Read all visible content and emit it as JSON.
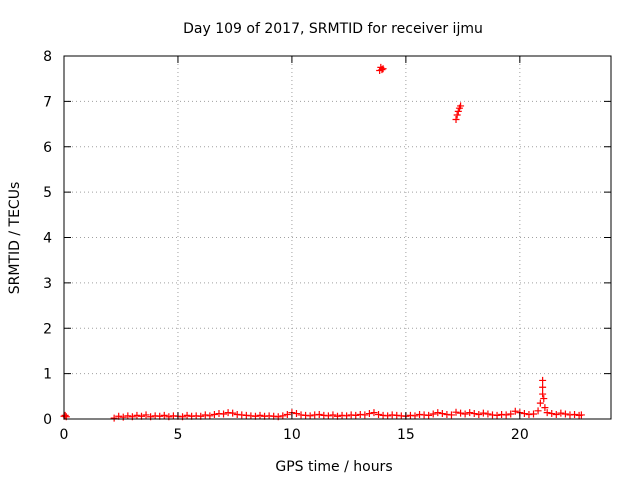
{
  "chart_data": {
    "type": "scatter",
    "title": "Day 109 of 2017, SRMTID for receiver ijmu",
    "xlabel": "GPS time / hours",
    "ylabel": "SRMTID / TECUs",
    "xlim": [
      0,
      24
    ],
    "ylim": [
      0,
      8
    ],
    "xticks": [
      0,
      5,
      10,
      15,
      20
    ],
    "yticks": [
      0,
      1,
      2,
      3,
      4,
      5,
      6,
      7,
      8
    ],
    "grid": true,
    "marker": "plus",
    "series": [
      {
        "name": "SRMTID",
        "color": "#ff0000",
        "points": [
          [
            0.0,
            0.06
          ],
          [
            0.05,
            0.08
          ],
          [
            0.1,
            0.05
          ],
          [
            2.2,
            0.02
          ],
          [
            2.4,
            0.06
          ],
          [
            2.6,
            0.04
          ],
          [
            2.8,
            0.07
          ],
          [
            3.0,
            0.05
          ],
          [
            3.2,
            0.08
          ],
          [
            3.4,
            0.06
          ],
          [
            3.6,
            0.09
          ],
          [
            3.8,
            0.05
          ],
          [
            4.0,
            0.07
          ],
          [
            4.2,
            0.06
          ],
          [
            4.4,
            0.08
          ],
          [
            4.6,
            0.05
          ],
          [
            4.8,
            0.07
          ],
          [
            5.0,
            0.06
          ],
          [
            5.2,
            0.05
          ],
          [
            5.4,
            0.08
          ],
          [
            5.6,
            0.06
          ],
          [
            5.8,
            0.07
          ],
          [
            6.0,
            0.06
          ],
          [
            6.2,
            0.09
          ],
          [
            6.4,
            0.07
          ],
          [
            6.6,
            0.1
          ],
          [
            6.8,
            0.12
          ],
          [
            7.0,
            0.11
          ],
          [
            7.2,
            0.14
          ],
          [
            7.4,
            0.13
          ],
          [
            7.6,
            0.1
          ],
          [
            7.8,
            0.09
          ],
          [
            8.0,
            0.08
          ],
          [
            8.2,
            0.07
          ],
          [
            8.4,
            0.06
          ],
          [
            8.6,
            0.08
          ],
          [
            8.8,
            0.06
          ],
          [
            9.0,
            0.07
          ],
          [
            9.2,
            0.06
          ],
          [
            9.4,
            0.05
          ],
          [
            9.6,
            0.07
          ],
          [
            9.8,
            0.1
          ],
          [
            10.0,
            0.14
          ],
          [
            10.2,
            0.12
          ],
          [
            10.4,
            0.09
          ],
          [
            10.6,
            0.08
          ],
          [
            10.8,
            0.07
          ],
          [
            11.0,
            0.09
          ],
          [
            11.2,
            0.1
          ],
          [
            11.4,
            0.08
          ],
          [
            11.6,
            0.07
          ],
          [
            11.8,
            0.09
          ],
          [
            12.0,
            0.06
          ],
          [
            12.2,
            0.08
          ],
          [
            12.4,
            0.07
          ],
          [
            12.6,
            0.09
          ],
          [
            12.8,
            0.08
          ],
          [
            13.0,
            0.1
          ],
          [
            13.2,
            0.09
          ],
          [
            13.4,
            0.12
          ],
          [
            13.6,
            0.14
          ],
          [
            13.8,
            0.1
          ],
          [
            14.0,
            0.08
          ],
          [
            14.2,
            0.07
          ],
          [
            14.4,
            0.09
          ],
          [
            14.6,
            0.08
          ],
          [
            14.8,
            0.07
          ],
          [
            15.0,
            0.06
          ],
          [
            15.2,
            0.08
          ],
          [
            15.4,
            0.07
          ],
          [
            15.6,
            0.1
          ],
          [
            15.8,
            0.09
          ],
          [
            16.0,
            0.08
          ],
          [
            16.2,
            0.11
          ],
          [
            16.4,
            0.14
          ],
          [
            16.6,
            0.12
          ],
          [
            16.8,
            0.1
          ],
          [
            17.0,
            0.09
          ],
          [
            17.2,
            0.15
          ],
          [
            17.4,
            0.13
          ],
          [
            17.6,
            0.11
          ],
          [
            17.8,
            0.14
          ],
          [
            18.0,
            0.12
          ],
          [
            18.2,
            0.1
          ],
          [
            18.4,
            0.13
          ],
          [
            18.6,
            0.11
          ],
          [
            18.8,
            0.09
          ],
          [
            19.0,
            0.08
          ],
          [
            19.2,
            0.1
          ],
          [
            19.4,
            0.09
          ],
          [
            19.6,
            0.11
          ],
          [
            19.8,
            0.17
          ],
          [
            20.0,
            0.14
          ],
          [
            20.2,
            0.12
          ],
          [
            20.4,
            0.1
          ],
          [
            20.6,
            0.11
          ],
          [
            20.8,
            0.18
          ],
          [
            20.9,
            0.35
          ],
          [
            21.0,
            0.55
          ],
          [
            21.0,
            0.7
          ],
          [
            21.0,
            0.85
          ],
          [
            21.05,
            0.45
          ],
          [
            21.1,
            0.25
          ],
          [
            21.2,
            0.14
          ],
          [
            21.4,
            0.12
          ],
          [
            21.6,
            0.1
          ],
          [
            21.8,
            0.13
          ],
          [
            22.0,
            0.11
          ],
          [
            22.2,
            0.09
          ],
          [
            22.4,
            0.1
          ],
          [
            22.6,
            0.08
          ],
          [
            22.7,
            0.09
          ],
          [
            13.85,
            7.68
          ],
          [
            13.9,
            7.75
          ],
          [
            13.95,
            7.7
          ],
          [
            14.0,
            7.72
          ],
          [
            17.2,
            6.6
          ],
          [
            17.25,
            6.7
          ],
          [
            17.3,
            6.78
          ],
          [
            17.35,
            6.85
          ],
          [
            17.4,
            6.9
          ]
        ]
      }
    ]
  }
}
